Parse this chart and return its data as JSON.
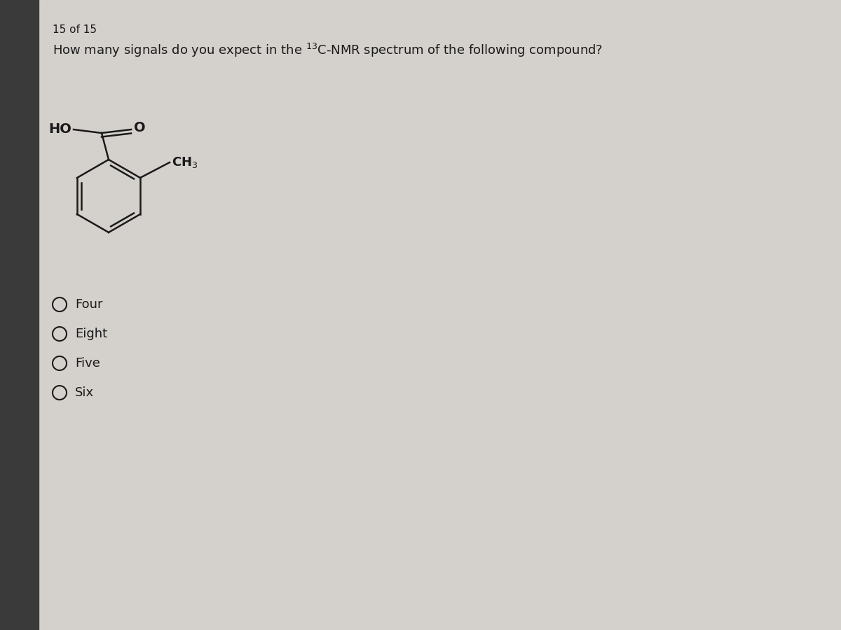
{
  "page_indicator": "15 of 15",
  "choices": [
    "Four",
    "Eight",
    "Five",
    "Six"
  ],
  "bg_color": "#d4d0cc",
  "left_bar_color": "#3a3a3a",
  "text_color": "#1a1a1a",
  "title_fontsize": 13,
  "choice_fontsize": 13,
  "page_fontsize": 11
}
